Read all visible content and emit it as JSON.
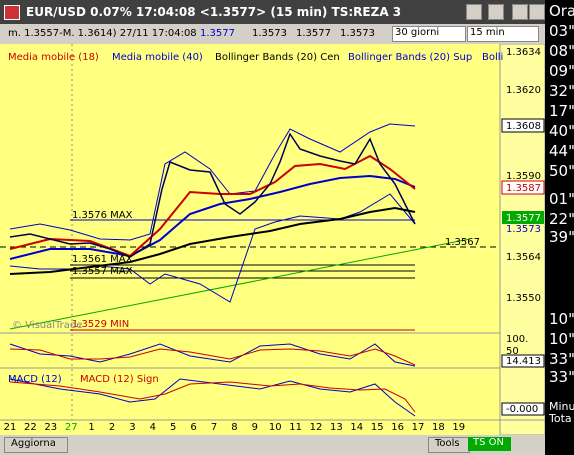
{
  "title_bar": {
    "text": "EUR/USD 0.07% 17:04:08  <1.3577> (15 min) TS:REZA 3"
  },
  "info_bar": {
    "range": "m. 1.3557-M. 1.3614) 27/11 17:04:08",
    "last": "1.3577",
    "open": "1.3573",
    "high": "1.3577",
    "low": "1.3573",
    "period": "30 giorni",
    "interval": "15 min"
  },
  "legend": [
    "Media mobile (18)",
    "Media mobile (40)",
    "Bollinger Bands (20) Cen",
    "Bollinger Bands (20) Sup",
    "Bolli"
  ],
  "price_axis": [
    "1.3634",
    "1.3620",
    "1.3608",
    "1.3590",
    "1.3587",
    "1.3577",
    "1.3573",
    "1.3564",
    "1.3550"
  ],
  "annotations": [
    "1.3576 MAX",
    "1.3567",
    "1.3561 MAX",
    "1.3557 MAX",
    "1.3529 MIN",
    "© VisualTrade"
  ],
  "stoch_axis": [
    "100.",
    "50",
    "14.413"
  ],
  "macd": {
    "labels": [
      "MACD (12)",
      "MACD (12) Sign"
    ],
    "value": "-0.000"
  },
  "x_axis": [
    "21",
    "22",
    "23",
    "27",
    "1",
    "2",
    "3",
    "4",
    "5",
    "6",
    "7",
    "8",
    "9",
    "10",
    "11",
    "12",
    "13",
    "14",
    "15",
    "16",
    "17",
    "18",
    "19"
  ],
  "side_panel": [
    "Ora",
    "03\"",
    "08\"",
    "09\"",
    "32\"",
    "17\"",
    "40\"",
    "44\"",
    "50\"",
    "01\"",
    "22\"",
    "39\"",
    "10\"",
    "10\"",
    "33\"",
    "33\"",
    "Minu",
    "Tota"
  ],
  "buttons": {
    "refresh": "Aggiorna",
    "tools": "Tools",
    "ts": "TS ON"
  }
}
